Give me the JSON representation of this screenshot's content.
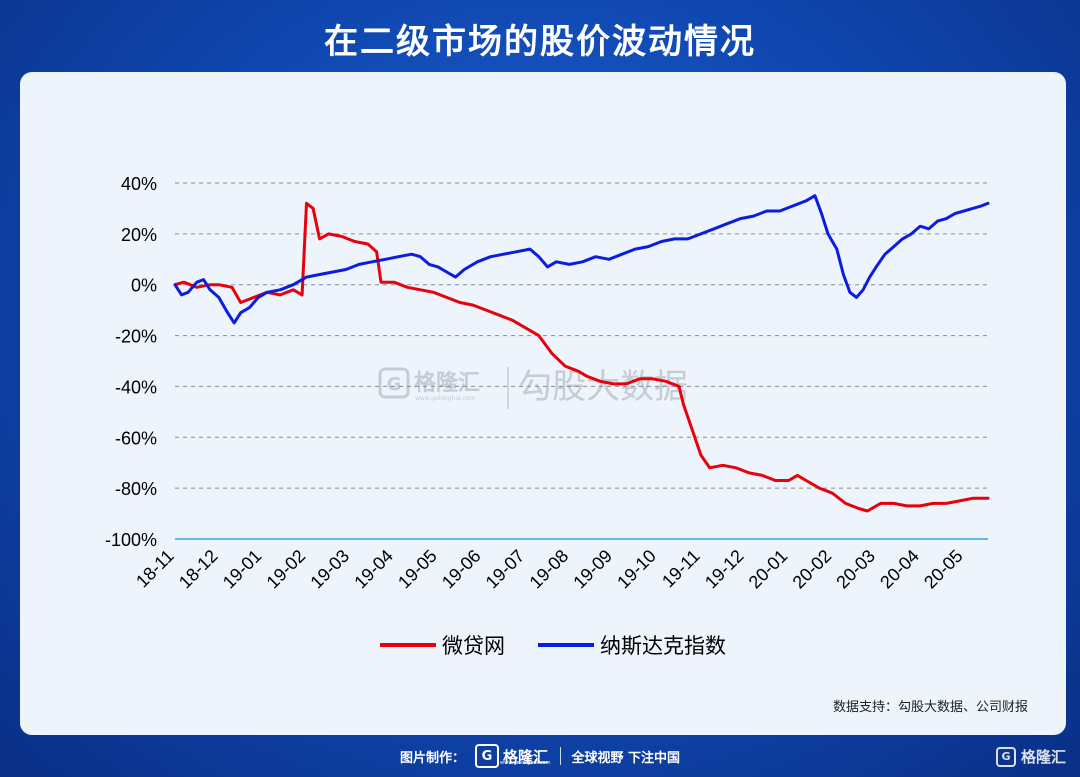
{
  "header": {
    "title": "在二级市场的股价波动情况"
  },
  "source_note": "数据支持：勾股大数据、公司财报",
  "watermark": {
    "logo_letter": "G",
    "brand": "格隆汇",
    "brand_url": "www.gelonghui.com",
    "product": "勾股大数据"
  },
  "footer": {
    "made_by": "图片制作：",
    "logo_letter": "G",
    "brand": "格隆汇",
    "brand_url": "www.gelonghui.com",
    "slogan": "全球视野 下注中国"
  },
  "corner_logo": {
    "letter": "G",
    "brand": "格隆汇"
  },
  "colors": {
    "weidai": "#e8000b",
    "nasdaq": "#0a1de0",
    "grid": "#8a8a8a",
    "baseline": "#2aa8e8"
  },
  "chart_data": {
    "type": "line",
    "title": "",
    "xlabel": "",
    "ylabel": "",
    "ylim": [
      -100,
      40
    ],
    "yticks": [
      "40%",
      "20%",
      "0%",
      "-20%",
      "-40%",
      "-60%",
      "-80%",
      "-100%"
    ],
    "ytick_values": [
      40,
      20,
      0,
      -20,
      -40,
      -60,
      -80,
      -100
    ],
    "xtick_labels": [
      "18-11",
      "18-12",
      "19-01",
      "19-02",
      "19-03",
      "19-04",
      "19-05",
      "19-06",
      "19-07",
      "19-08",
      "19-09",
      "19-10",
      "19-11",
      "19-12",
      "20-01",
      "20-02",
      "20-03",
      "20-04",
      "20-05"
    ],
    "xlim": [
      0,
      18.55
    ],
    "grid": true,
    "legend_position": "bottom",
    "series": [
      {
        "name": "微贷网",
        "points": [
          [
            0.0,
            0
          ],
          [
            0.2,
            1
          ],
          [
            0.5,
            -1
          ],
          [
            0.8,
            0
          ],
          [
            1.0,
            0
          ],
          [
            1.3,
            -1
          ],
          [
            1.5,
            -7
          ],
          [
            1.8,
            -5
          ],
          [
            2.1,
            -3
          ],
          [
            2.4,
            -4
          ],
          [
            2.7,
            -2
          ],
          [
            2.9,
            -4
          ],
          [
            3.0,
            32
          ],
          [
            3.15,
            30
          ],
          [
            3.3,
            18
          ],
          [
            3.5,
            20
          ],
          [
            3.8,
            19
          ],
          [
            4.1,
            17
          ],
          [
            4.4,
            16
          ],
          [
            4.6,
            13
          ],
          [
            4.7,
            1
          ],
          [
            5.0,
            1
          ],
          [
            5.3,
            -1
          ],
          [
            5.6,
            -2
          ],
          [
            5.9,
            -3
          ],
          [
            6.2,
            -5
          ],
          [
            6.5,
            -7
          ],
          [
            6.8,
            -8
          ],
          [
            7.1,
            -10
          ],
          [
            7.4,
            -12
          ],
          [
            7.7,
            -14
          ],
          [
            8.0,
            -17
          ],
          [
            8.3,
            -20
          ],
          [
            8.6,
            -27
          ],
          [
            8.9,
            -32
          ],
          [
            9.2,
            -34
          ],
          [
            9.4,
            -36
          ],
          [
            9.7,
            -38
          ],
          [
            10.0,
            -39
          ],
          [
            10.3,
            -39
          ],
          [
            10.6,
            -37
          ],
          [
            10.9,
            -37
          ],
          [
            11.2,
            -38
          ],
          [
            11.5,
            -40
          ],
          [
            11.6,
            -47
          ],
          [
            11.8,
            -57
          ],
          [
            12.0,
            -67
          ],
          [
            12.2,
            -72
          ],
          [
            12.5,
            -71
          ],
          [
            12.8,
            -72
          ],
          [
            13.1,
            -74
          ],
          [
            13.4,
            -75
          ],
          [
            13.7,
            -77
          ],
          [
            14.0,
            -77
          ],
          [
            14.2,
            -75
          ],
          [
            14.4,
            -77
          ],
          [
            14.7,
            -80
          ],
          [
            15.0,
            -82
          ],
          [
            15.3,
            -86
          ],
          [
            15.6,
            -88
          ],
          [
            15.8,
            -89
          ],
          [
            16.1,
            -86
          ],
          [
            16.4,
            -86
          ],
          [
            16.7,
            -87
          ],
          [
            17.0,
            -87
          ],
          [
            17.3,
            -86
          ],
          [
            17.6,
            -86
          ],
          [
            17.9,
            -85
          ],
          [
            18.2,
            -84
          ],
          [
            18.55,
            -84
          ]
        ]
      },
      {
        "name": "纳斯达克指数",
        "points": [
          [
            0.0,
            0
          ],
          [
            0.15,
            -4
          ],
          [
            0.3,
            -3
          ],
          [
            0.5,
            1
          ],
          [
            0.65,
            2
          ],
          [
            0.8,
            -2
          ],
          [
            1.0,
            -5
          ],
          [
            1.2,
            -11
          ],
          [
            1.35,
            -15
          ],
          [
            1.5,
            -11
          ],
          [
            1.7,
            -9
          ],
          [
            1.9,
            -5
          ],
          [
            2.1,
            -3
          ],
          [
            2.4,
            -2
          ],
          [
            2.7,
            0
          ],
          [
            3.0,
            3
          ],
          [
            3.3,
            4
          ],
          [
            3.6,
            5
          ],
          [
            3.9,
            6
          ],
          [
            4.2,
            8
          ],
          [
            4.5,
            9
          ],
          [
            4.8,
            10
          ],
          [
            5.1,
            11
          ],
          [
            5.4,
            12
          ],
          [
            5.6,
            11
          ],
          [
            5.8,
            8
          ],
          [
            6.0,
            7
          ],
          [
            6.2,
            5
          ],
          [
            6.4,
            3
          ],
          [
            6.6,
            6
          ],
          [
            6.9,
            9
          ],
          [
            7.2,
            11
          ],
          [
            7.5,
            12
          ],
          [
            7.8,
            13
          ],
          [
            8.1,
            14
          ],
          [
            8.3,
            11
          ],
          [
            8.5,
            7
          ],
          [
            8.7,
            9
          ],
          [
            9.0,
            8
          ],
          [
            9.3,
            9
          ],
          [
            9.6,
            11
          ],
          [
            9.9,
            10
          ],
          [
            10.2,
            12
          ],
          [
            10.5,
            14
          ],
          [
            10.8,
            15
          ],
          [
            11.1,
            17
          ],
          [
            11.4,
            18
          ],
          [
            11.7,
            18
          ],
          [
            12.0,
            20
          ],
          [
            12.3,
            22
          ],
          [
            12.6,
            24
          ],
          [
            12.9,
            26
          ],
          [
            13.2,
            27
          ],
          [
            13.5,
            29
          ],
          [
            13.8,
            29
          ],
          [
            14.1,
            31
          ],
          [
            14.4,
            33
          ],
          [
            14.6,
            35
          ],
          [
            14.75,
            28
          ],
          [
            14.9,
            20
          ],
          [
            15.1,
            14
          ],
          [
            15.25,
            4
          ],
          [
            15.4,
            -3
          ],
          [
            15.55,
            -5
          ],
          [
            15.7,
            -2
          ],
          [
            15.85,
            3
          ],
          [
            16.0,
            7
          ],
          [
            16.2,
            12
          ],
          [
            16.4,
            15
          ],
          [
            16.6,
            18
          ],
          [
            16.8,
            20
          ],
          [
            17.0,
            23
          ],
          [
            17.2,
            22
          ],
          [
            17.4,
            25
          ],
          [
            17.6,
            26
          ],
          [
            17.8,
            28
          ],
          [
            18.0,
            29
          ],
          [
            18.2,
            30
          ],
          [
            18.4,
            31
          ],
          [
            18.55,
            32
          ]
        ]
      }
    ]
  }
}
